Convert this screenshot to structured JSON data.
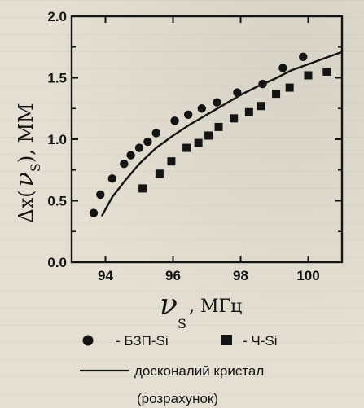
{
  "chart_data": {
    "type": "scatter",
    "xlim": [
      93,
      101
    ],
    "ylim": [
      0,
      2
    ],
    "xticks": [
      94,
      96,
      98,
      100
    ],
    "yticks": [
      0.0,
      0.5,
      1.0,
      1.5,
      2.0
    ],
    "x_ticklabels": [
      "94",
      "96",
      "98",
      "100"
    ],
    "y_ticklabels": [
      "0.0",
      "0.5",
      "1.0",
      "1.5",
      "2.0"
    ],
    "ylabel": {
      "main": "Δx(",
      "nu": "ν",
      "sub": "S",
      "tail": "), MM"
    },
    "xlabel": {
      "nu": "ν",
      "sub": "S",
      "tail": ", МГц"
    },
    "series": [
      {
        "name": "- БЗП-Si",
        "marker": "circle",
        "color": "#141414",
        "x": [
          93.65,
          93.85,
          94.2,
          94.55,
          94.75,
          95.0,
          95.25,
          95.5,
          96.05,
          96.45,
          96.85,
          97.3,
          97.9,
          98.65,
          99.25,
          99.85
        ],
        "y": [
          0.4,
          0.55,
          0.68,
          0.8,
          0.87,
          0.93,
          0.98,
          1.05,
          1.15,
          1.2,
          1.25,
          1.3,
          1.38,
          1.45,
          1.58,
          1.67
        ]
      },
      {
        "name": "- Ч-Si",
        "marker": "square",
        "color": "#141414",
        "x": [
          95.1,
          95.6,
          95.95,
          96.4,
          96.75,
          97.05,
          97.35,
          97.8,
          98.25,
          98.6,
          99.05,
          99.45,
          100.0,
          100.55
        ],
        "y": [
          0.6,
          0.72,
          0.82,
          0.93,
          0.97,
          1.03,
          1.1,
          1.17,
          1.22,
          1.27,
          1.37,
          1.42,
          1.52,
          1.55
        ]
      },
      {
        "name": "досконалий кристал",
        "marker": "line",
        "color": "#141414",
        "x": [
          93.9,
          94.2,
          94.6,
          95.0,
          95.5,
          96.0,
          96.5,
          97.0,
          97.5,
          98.0,
          98.5,
          99.0,
          99.5,
          100.0,
          100.5,
          101.0
        ],
        "y": [
          0.38,
          0.53,
          0.67,
          0.8,
          0.93,
          1.03,
          1.12,
          1.2,
          1.28,
          1.36,
          1.43,
          1.49,
          1.56,
          1.61,
          1.66,
          1.71
        ]
      }
    ],
    "legend": [
      {
        "marker": "circle",
        "label": "- БЗП-Si"
      },
      {
        "marker": "square",
        "label": "- Ч-Si"
      },
      {
        "marker": "line",
        "label": "досконалий кристал"
      }
    ],
    "note": "(розрахунок)"
  }
}
